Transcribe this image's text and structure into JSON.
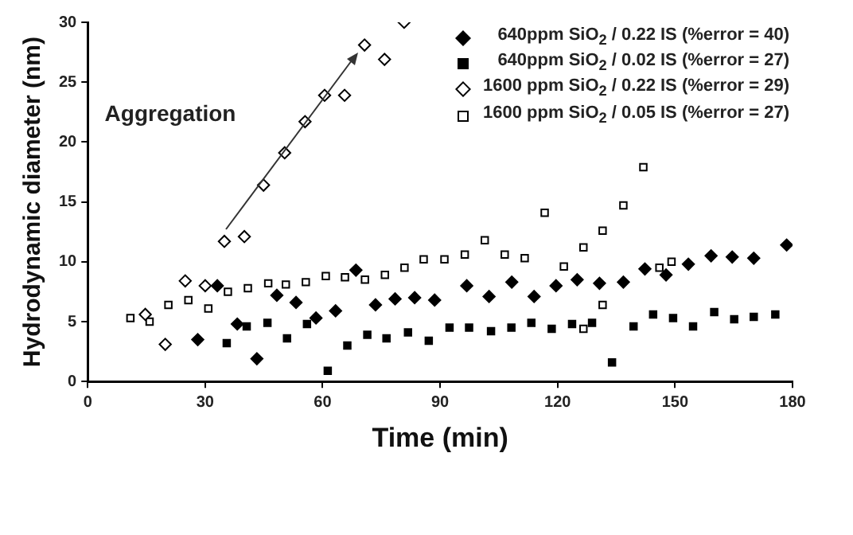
{
  "chart_data": {
    "type": "scatter",
    "xlabel": "Time (min)",
    "ylabel": "Hydrodynamic diameter (nm)",
    "xlim": [
      0,
      180
    ],
    "xticks": [
      0,
      30,
      60,
      90,
      120,
      150,
      180
    ],
    "ylim": [
      0,
      30
    ],
    "yticks": [
      0,
      5,
      10,
      15,
      20,
      25,
      30
    ],
    "grid": false,
    "legend": "top right",
    "annotations": [
      "Aggregation"
    ],
    "series": [
      {
        "name": "640ppm SiO$_{2}$ / 0.22 IS (%error = 40)",
        "color": "#000000",
        "marker": "diamond",
        "x": [
          28.1,
          33.1,
          38.2,
          43.2,
          48.3,
          53.2,
          58.3,
          63.3,
          68.5,
          73.5,
          78.5,
          83.5,
          88.6,
          96.8,
          102.5,
          108.3,
          114,
          119.6,
          125,
          130.7,
          136.8,
          142.3,
          147.7,
          153.4,
          159.2,
          164.6,
          170.1,
          178.5
        ],
        "values": [
          3.5,
          8.0,
          4.8,
          1.9,
          7.2,
          6.6,
          5.3,
          5.9,
          9.3,
          6.4,
          6.9,
          7.0,
          6.8,
          8.0,
          7.1,
          8.3,
          7.1,
          8.0,
          8.5,
          8.2,
          8.3,
          9.4,
          8.9,
          9.8,
          10.5,
          10.4,
          10.3,
          11.4
        ]
      },
      {
        "name": "640ppm SiO$_{2}$ / 0.02 IS (%error = 27)",
        "color": "#000000",
        "marker": "square",
        "x": [
          35.5,
          40.6,
          45.9,
          50.9,
          56,
          61.3,
          66.3,
          71.4,
          76.3,
          81.8,
          87.1,
          92.4,
          97.4,
          103,
          108.2,
          113.3,
          118.5,
          123.7,
          128.8,
          133.9,
          139.4,
          144.4,
          149.5,
          154.6,
          160,
          165.1,
          170.1,
          175.6
        ],
        "values": [
          3.2,
          4.6,
          4.9,
          3.6,
          4.8,
          0.9,
          3.0,
          3.9,
          3.6,
          4.1,
          3.4,
          4.5,
          4.5,
          4.2,
          4.5,
          4.9,
          4.4,
          4.8,
          4.9,
          1.6,
          4.6,
          5.6,
          5.3,
          4.6,
          5.8,
          5.2,
          5.4,
          5.6
        ]
      },
      {
        "name": "1600 ppm SiO$_{2}$ / 0.22 IS (%error = 29)",
        "color": "#ffffff",
        "marker": "diamond",
        "x": [
          14.7,
          19.8,
          24.9,
          30,
          34.9,
          40,
          44.9,
          50.3,
          55.5,
          60.5,
          65.6,
          70.7,
          75.8,
          80.8
        ],
        "values": [
          5.6,
          3.1,
          8.4,
          8.0,
          11.7,
          12.1,
          16.4,
          19.1,
          21.7,
          23.9,
          23.9,
          28.1,
          26.9,
          30.0
        ]
      },
      {
        "name": "1600 ppm SiO$_{2}$ / 0.05 IS (%error = 27)",
        "color": "#ffffff",
        "marker": "square",
        "x": [
          10.9,
          15.8,
          20.6,
          25.7,
          30.8,
          35.8,
          40.9,
          46.1,
          50.6,
          55.7,
          60.8,
          65.7,
          70.8,
          75.9,
          80.9,
          85.8,
          91.1,
          96.3,
          101.4,
          106.5,
          111.6,
          116.7,
          121.6,
          126.6,
          126.6,
          131.5,
          131.5,
          136.8,
          141.9,
          146,
          149.1
        ],
        "values": [
          5.3,
          5.0,
          6.4,
          6.8,
          6.1,
          7.5,
          7.8,
          8.2,
          8.1,
          8.3,
          8.8,
          8.7,
          8.5,
          8.9,
          9.5,
          10.2,
          10.2,
          10.6,
          11.8,
          10.6,
          10.3,
          14.1,
          9.6,
          11.2,
          4.4,
          12.6,
          6.4,
          14.7,
          17.9,
          9.5,
          10.0
        ]
      }
    ]
  }
}
